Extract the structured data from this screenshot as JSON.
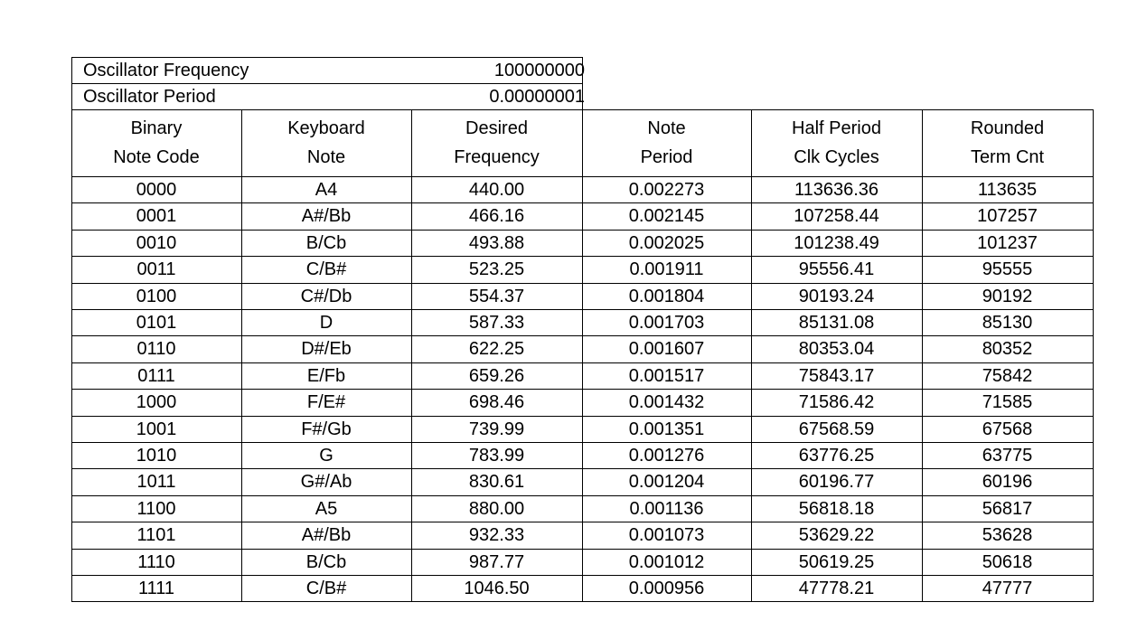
{
  "oscillator": {
    "frequency_label": "Oscillator Frequency",
    "frequency_value": "100000000",
    "period_label": "Oscillator Period",
    "period_value": "0.00000001"
  },
  "headers": [
    [
      "Binary",
      "Note Code"
    ],
    [
      "Keyboard",
      "Note"
    ],
    [
      "Desired",
      "Frequency"
    ],
    [
      "Note",
      "Period"
    ],
    [
      "Half Period",
      "Clk Cycles"
    ],
    [
      "Rounded",
      "Term Cnt"
    ]
  ],
  "rows": [
    [
      "0000",
      "A4",
      "440.00",
      "0.002273",
      "113636.36",
      "113635"
    ],
    [
      "0001",
      "A#/Bb",
      "466.16",
      "0.002145",
      "107258.44",
      "107257"
    ],
    [
      "0010",
      "B/Cb",
      "493.88",
      "0.002025",
      "101238.49",
      "101237"
    ],
    [
      "0011",
      "C/B#",
      "523.25",
      "0.001911",
      "95556.41",
      "95555"
    ],
    [
      "0100",
      "C#/Db",
      "554.37",
      "0.001804",
      "90193.24",
      "90192"
    ],
    [
      "0101",
      "D",
      "587.33",
      "0.001703",
      "85131.08",
      "85130"
    ],
    [
      "0110",
      "D#/Eb",
      "622.25",
      "0.001607",
      "80353.04",
      "80352"
    ],
    [
      "0111",
      "E/Fb",
      "659.26",
      "0.001517",
      "75843.17",
      "75842"
    ],
    [
      "1000",
      "F/E#",
      "698.46",
      "0.001432",
      "71586.42",
      "71585"
    ],
    [
      "1001",
      "F#/Gb",
      "739.99",
      "0.001351",
      "67568.59",
      "67568"
    ],
    [
      "1010",
      "G",
      "783.99",
      "0.001276",
      "63776.25",
      "63775"
    ],
    [
      "1011",
      "G#/Ab",
      "830.61",
      "0.001204",
      "60196.77",
      "60196"
    ],
    [
      "1100",
      "A5",
      "880.00",
      "0.001136",
      "56818.18",
      "56817"
    ],
    [
      "1101",
      "A#/Bb",
      "932.33",
      "0.001073",
      "53629.22",
      "53628"
    ],
    [
      "1110",
      "B/Cb",
      "987.77",
      "0.001012",
      "50619.25",
      "50618"
    ],
    [
      "1111",
      "C/B#",
      "1046.50",
      "0.000956",
      "47778.21",
      "47777"
    ]
  ]
}
